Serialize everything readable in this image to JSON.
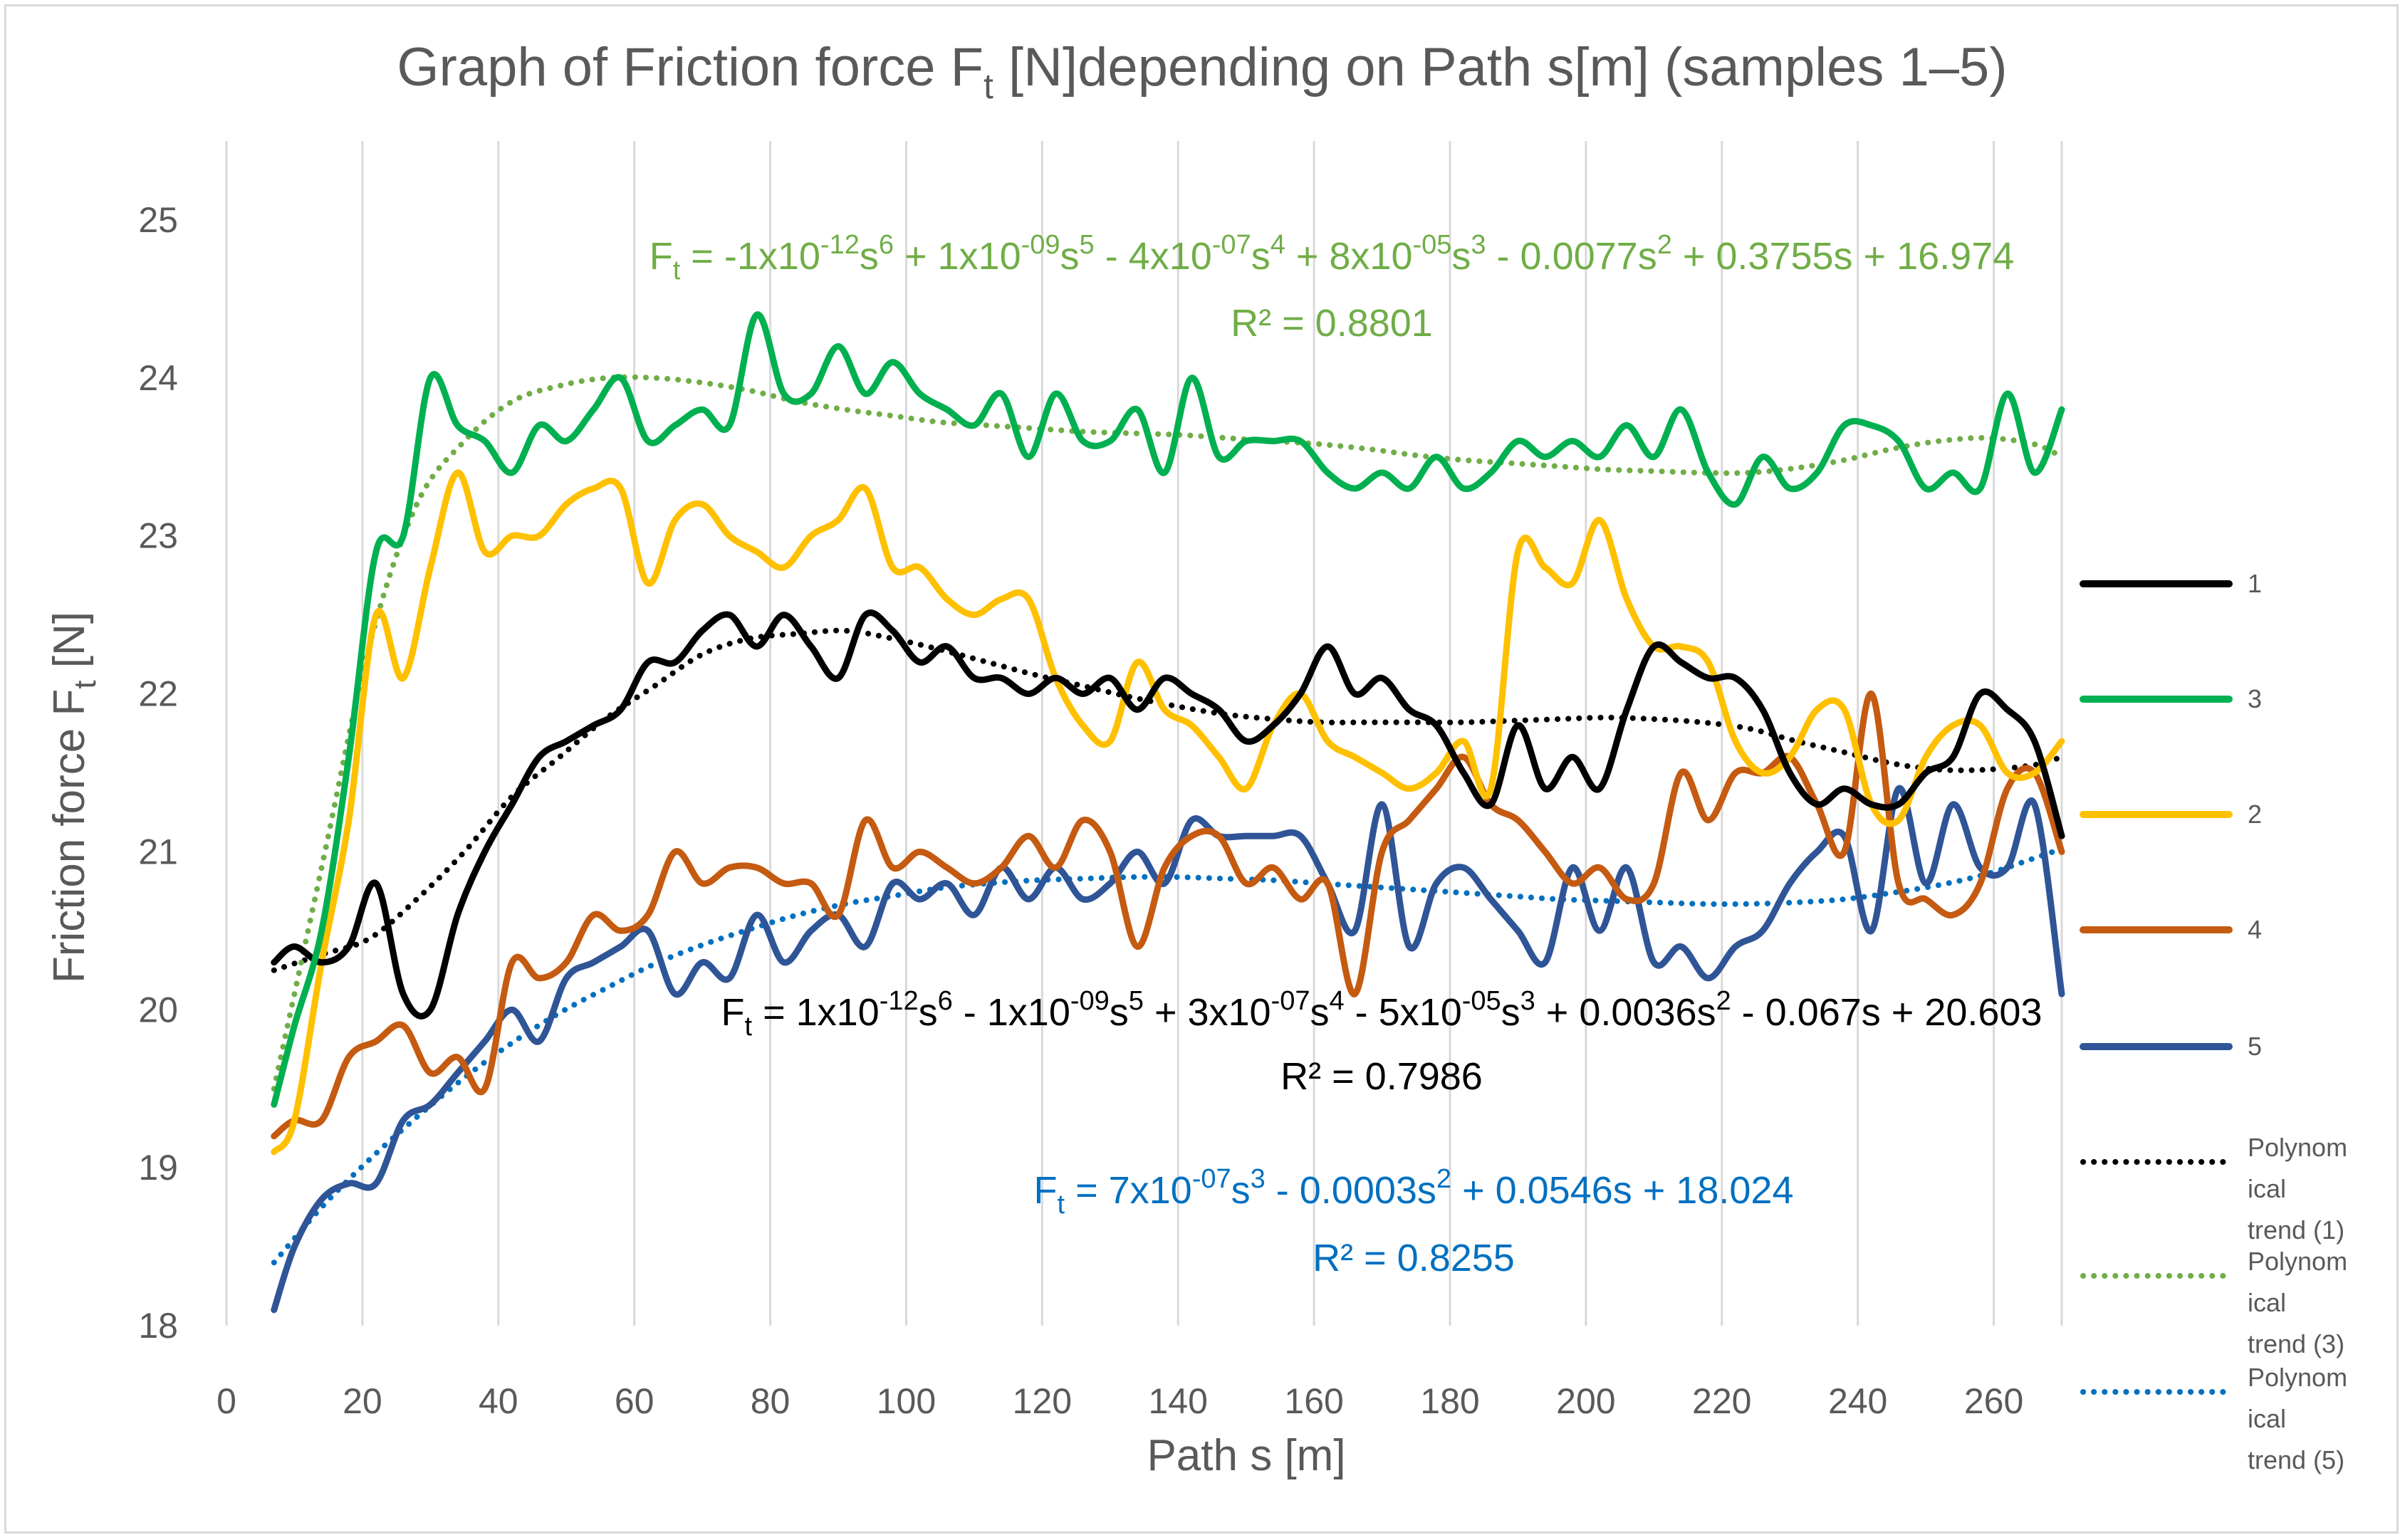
{
  "chart_data": {
    "type": "line",
    "title": "Graph of Friction force F",
    "title_sub": "t",
    "title_rest": " [N]depending on Path s[m] (samples 1–5)",
    "xlabel": "Path s [m]",
    "ylabel": "Friction force F",
    "ylabel_sub": "t",
    "ylabel_rest": " [N]",
    "xlim": [
      0,
      270
    ],
    "ylim": [
      18,
      25.5
    ],
    "xticks": [
      "0",
      "20",
      "40",
      "60",
      "80",
      "100",
      "120",
      "140",
      "160",
      "180",
      "200",
      "220",
      "240",
      "260"
    ],
    "yticks": [
      "18",
      "19",
      "20",
      "21",
      "22",
      "23",
      "24",
      "25"
    ],
    "grid": "vertical",
    "legend_position": "right",
    "series": [
      {
        "name": "1",
        "color": "#000000",
        "x": [
          7,
          10,
          14,
          18,
          22,
          26,
          30,
          34,
          38,
          42,
          46,
          50,
          54,
          58,
          62,
          66,
          70,
          74,
          78,
          82,
          86,
          90,
          94,
          98,
          102,
          106,
          110,
          114,
          118,
          122,
          126,
          130,
          134,
          138,
          142,
          146,
          150,
          154,
          158,
          162,
          166,
          170,
          174,
          178,
          182,
          186,
          190,
          194,
          198,
          202,
          206,
          210,
          214,
          218,
          222,
          226,
          230,
          234,
          238,
          242,
          246,
          250,
          254,
          258,
          262,
          266,
          270
        ],
        "y": [
          20.3,
          20.4,
          20.3,
          20.4,
          20.8,
          20.1,
          20.0,
          20.6,
          21.0,
          21.3,
          21.6,
          21.7,
          21.8,
          21.9,
          22.2,
          22.2,
          22.4,
          22.5,
          22.3,
          22.5,
          22.3,
          22.1,
          22.5,
          22.4,
          22.2,
          22.3,
          22.1,
          22.1,
          22.0,
          22.1,
          22.0,
          22.1,
          21.9,
          22.1,
          22.0,
          21.9,
          21.7,
          21.8,
          22.0,
          22.3,
          22.0,
          22.1,
          21.9,
          21.8,
          21.5,
          21.3,
          21.8,
          21.4,
          21.6,
          21.4,
          21.9,
          22.3,
          22.2,
          22.1,
          22.1,
          21.9,
          21.5,
          21.3,
          21.4,
          21.3,
          21.3,
          21.5,
          21.6,
          22.0,
          21.9,
          21.7,
          21.1
        ]
      },
      {
        "name": "3",
        "color": "#00b050",
        "x": [
          7,
          10,
          14,
          18,
          22,
          26,
          30,
          34,
          38,
          42,
          46,
          50,
          54,
          58,
          62,
          66,
          70,
          74,
          78,
          82,
          86,
          90,
          94,
          98,
          102,
          106,
          110,
          114,
          118,
          122,
          126,
          130,
          134,
          138,
          142,
          146,
          150,
          154,
          158,
          162,
          166,
          170,
          174,
          178,
          182,
          186,
          190,
          194,
          198,
          202,
          206,
          210,
          214,
          218,
          222,
          226,
          230,
          234,
          238,
          242,
          246,
          250,
          254,
          258,
          262,
          266,
          270
        ],
        "y": [
          19.4,
          19.9,
          20.5,
          21.6,
          22.9,
          23.0,
          24.0,
          23.7,
          23.6,
          23.4,
          23.7,
          23.6,
          23.8,
          24.0,
          23.6,
          23.7,
          23.8,
          23.7,
          24.4,
          23.9,
          23.9,
          24.2,
          23.9,
          24.1,
          23.9,
          23.8,
          23.7,
          23.9,
          23.5,
          23.9,
          23.6,
          23.6,
          23.8,
          23.4,
          24.0,
          23.5,
          23.6,
          23.6,
          23.6,
          23.4,
          23.3,
          23.4,
          23.3,
          23.5,
          23.3,
          23.4,
          23.6,
          23.5,
          23.6,
          23.5,
          23.7,
          23.5,
          23.8,
          23.4,
          23.2,
          23.5,
          23.3,
          23.4,
          23.7,
          23.7,
          23.6,
          23.3,
          23.4,
          23.3,
          23.9,
          23.4,
          23.8
        ]
      },
      {
        "name": "2",
        "color": "#ffc000",
        "x": [
          7,
          10,
          14,
          18,
          22,
          26,
          30,
          34,
          38,
          42,
          46,
          50,
          54,
          58,
          62,
          66,
          70,
          74,
          78,
          82,
          86,
          90,
          94,
          98,
          102,
          106,
          110,
          114,
          118,
          122,
          126,
          130,
          134,
          138,
          142,
          146,
          150,
          154,
          158,
          162,
          166,
          170,
          174,
          178,
          182,
          186,
          190,
          194,
          198,
          202,
          206,
          210,
          214,
          218,
          222,
          226,
          230,
          234,
          238,
          242,
          246,
          250,
          254,
          258,
          262,
          266,
          270
        ],
        "y": [
          19.1,
          19.3,
          20.3,
          21.2,
          22.5,
          22.1,
          22.8,
          23.4,
          22.9,
          23.0,
          23.0,
          23.2,
          23.3,
          23.3,
          22.7,
          23.1,
          23.2,
          23.0,
          22.9,
          22.8,
          23.0,
          23.1,
          23.3,
          22.8,
          22.8,
          22.6,
          22.5,
          22.6,
          22.6,
          22.1,
          21.8,
          21.7,
          22.2,
          21.9,
          21.8,
          21.6,
          21.4,
          21.8,
          22.0,
          21.7,
          21.6,
          21.5,
          21.4,
          21.5,
          21.7,
          21.4,
          22.9,
          22.8,
          22.7,
          23.1,
          22.6,
          22.3,
          22.3,
          22.2,
          21.7,
          21.5,
          21.6,
          21.9,
          21.9,
          21.3,
          21.2,
          21.6,
          21.8,
          21.8,
          21.5,
          21.5,
          21.7
        ]
      },
      {
        "name": "4",
        "color": "#c55a11",
        "x": [
          7,
          10,
          14,
          18,
          22,
          26,
          30,
          34,
          38,
          42,
          46,
          50,
          54,
          58,
          62,
          66,
          70,
          74,
          78,
          82,
          86,
          90,
          94,
          98,
          102,
          106,
          110,
          114,
          118,
          122,
          126,
          130,
          134,
          138,
          142,
          146,
          150,
          154,
          158,
          162,
          166,
          170,
          174,
          178,
          182,
          186,
          190,
          194,
          198,
          202,
          206,
          210,
          214,
          218,
          222,
          226,
          230,
          234,
          238,
          242,
          246,
          250,
          254,
          258,
          262,
          266,
          270
        ],
        "y": [
          19.2,
          19.3,
          19.3,
          19.7,
          19.8,
          19.9,
          19.6,
          19.7,
          19.5,
          20.3,
          20.2,
          20.3,
          20.6,
          20.5,
          20.6,
          21.0,
          20.8,
          20.9,
          20.9,
          20.8,
          20.8,
          20.6,
          21.2,
          20.9,
          21.0,
          20.9,
          20.8,
          20.9,
          21.1,
          20.9,
          21.2,
          21.0,
          20.4,
          20.9,
          21.1,
          21.1,
          20.8,
          20.9,
          20.7,
          20.8,
          20.1,
          21.0,
          21.2,
          21.4,
          21.6,
          21.3,
          21.2,
          21.0,
          20.8,
          20.9,
          20.7,
          20.8,
          21.5,
          21.2,
          21.5,
          21.5,
          21.6,
          21.3,
          21.0,
          22.0,
          20.8,
          20.7,
          20.6,
          20.8,
          21.4,
          21.5,
          21.0
        ]
      },
      {
        "name": "5",
        "color": "#2f5597",
        "x": [
          7,
          10,
          14,
          18,
          22,
          26,
          30,
          34,
          38,
          42,
          46,
          50,
          54,
          58,
          62,
          66,
          70,
          74,
          78,
          82,
          86,
          90,
          94,
          98,
          102,
          106,
          110,
          114,
          118,
          122,
          126,
          130,
          134,
          138,
          142,
          146,
          150,
          154,
          158,
          162,
          166,
          170,
          174,
          178,
          182,
          186,
          190,
          194,
          198,
          202,
          206,
          210,
          214,
          218,
          222,
          226,
          230,
          234,
          238,
          242,
          246,
          250,
          254,
          258,
          262,
          266,
          270
        ],
        "y": [
          18.1,
          18.5,
          18.8,
          18.9,
          18.9,
          19.3,
          19.4,
          19.6,
          19.8,
          20.0,
          19.8,
          20.2,
          20.3,
          20.4,
          20.5,
          20.1,
          20.3,
          20.2,
          20.6,
          20.3,
          20.5,
          20.6,
          20.4,
          20.8,
          20.7,
          20.8,
          20.6,
          20.9,
          20.7,
          20.9,
          20.7,
          20.8,
          21.0,
          20.8,
          21.2,
          21.1,
          21.1,
          21.1,
          21.1,
          20.8,
          20.5,
          21.3,
          20.4,
          20.8,
          20.9,
          20.7,
          20.5,
          20.3,
          20.9,
          20.5,
          20.9,
          20.3,
          20.4,
          20.2,
          20.4,
          20.5,
          20.8,
          21.0,
          21.1,
          20.5,
          21.4,
          20.8,
          21.3,
          20.9,
          20.9,
          21.3,
          20.1
        ]
      },
      {
        "name": "Polynomical trend (1)",
        "color": "#000000",
        "dashed": true,
        "x": [
          7,
          14,
          21,
          28,
          35,
          42,
          49,
          56,
          63,
          70,
          77,
          84,
          91,
          98,
          105,
          112,
          119,
          126,
          133,
          140,
          147,
          154,
          161,
          168,
          175,
          182,
          189,
          196,
          203,
          210,
          217,
          224,
          231,
          238,
          245,
          252,
          259,
          266,
          270
        ],
        "y": [
          20.25,
          20.35,
          20.45,
          20.7,
          21.0,
          21.35,
          21.6,
          21.85,
          22.05,
          22.25,
          22.35,
          22.38,
          22.4,
          22.35,
          22.28,
          22.2,
          22.12,
          22.05,
          21.98,
          21.92,
          21.87,
          21.84,
          21.82,
          21.82,
          21.82,
          21.82,
          21.83,
          21.84,
          21.85,
          21.84,
          21.82,
          21.78,
          21.7,
          21.63,
          21.56,
          21.52,
          21.52,
          21.55,
          21.6
        ]
      },
      {
        "name": "Polynomical trend (3)",
        "color": "#70ad47",
        "dashed": true,
        "x": [
          7,
          14,
          21,
          28,
          35,
          42,
          49,
          56,
          63,
          70,
          77,
          84,
          91,
          98,
          105,
          112,
          119,
          126,
          133,
          140,
          147,
          154,
          161,
          168,
          175,
          182,
          189,
          196,
          203,
          210,
          217,
          224,
          231,
          238,
          245,
          252,
          259,
          266,
          270
        ],
        "y": [
          19.5,
          20.9,
          22.3,
          23.2,
          23.6,
          23.85,
          23.95,
          24.0,
          24.0,
          23.97,
          23.92,
          23.85,
          23.8,
          23.76,
          23.72,
          23.7,
          23.68,
          23.66,
          23.65,
          23.64,
          23.62,
          23.6,
          23.58,
          23.55,
          23.51,
          23.48,
          23.46,
          23.44,
          23.42,
          23.41,
          23.4,
          23.4,
          23.43,
          23.48,
          23.55,
          23.6,
          23.62,
          23.58,
          23.5
        ]
      },
      {
        "name": "Polynomical trend (5)",
        "color": "#0070c0",
        "dashed": true,
        "x": [
          7,
          14,
          21,
          28,
          35,
          42,
          49,
          56,
          63,
          70,
          77,
          84,
          91,
          98,
          105,
          112,
          119,
          126,
          133,
          140,
          147,
          154,
          161,
          168,
          175,
          182,
          189,
          196,
          203,
          210,
          217,
          224,
          231,
          238,
          245,
          252,
          259,
          266,
          270
        ],
        "y": [
          18.4,
          18.75,
          19.05,
          19.32,
          19.57,
          19.79,
          19.98,
          20.14,
          20.29,
          20.41,
          20.51,
          20.6,
          20.67,
          20.72,
          20.77,
          20.8,
          20.82,
          20.83,
          20.84,
          20.84,
          20.83,
          20.82,
          20.8,
          20.78,
          20.76,
          20.74,
          20.72,
          20.7,
          20.69,
          20.68,
          20.67,
          20.67,
          20.68,
          20.7,
          20.74,
          20.79,
          20.86,
          20.96,
          21.02
        ]
      }
    ],
    "annotations": {
      "eq3": {
        "prefix": "F",
        "sub": "t",
        "body": " = -1x10",
        "color": "#70ad47",
        "parts": [
          [
            " = -1x10",
            "-12"
          ],
          [
            "s",
            "6"
          ],
          [
            " + 1x10",
            "-09"
          ],
          [
            "s",
            "5"
          ],
          [
            " - 4x10",
            "-07"
          ],
          [
            "s",
            "4"
          ],
          [
            " + 8x10",
            "-05"
          ],
          [
            "s",
            "3"
          ],
          [
            " - 0.0077s",
            "2"
          ],
          [
            " + 0.3755s + 16.974",
            ""
          ]
        ],
        "r2": "R² = 0.8801"
      },
      "eq1": {
        "prefix": "F",
        "sub": "t",
        "color": "#000000",
        "parts": [
          [
            " = 1x10",
            "-12"
          ],
          [
            "s",
            "6"
          ],
          [
            " - 1x10",
            "-09"
          ],
          [
            "s",
            "5"
          ],
          [
            " + 3x10",
            "-07"
          ],
          [
            "s",
            "4"
          ],
          [
            " - 5x10",
            "-05"
          ],
          [
            "s",
            "3"
          ],
          [
            " + 0.0036s",
            "2"
          ],
          [
            " - 0.067s + 20.603",
            ""
          ]
        ],
        "r2": "R² = 0.7986"
      },
      "eq5": {
        "prefix": "F",
        "sub": "t",
        "color": "#0070c0",
        "parts": [
          [
            " = 7x10",
            "-07"
          ],
          [
            "s",
            "3"
          ],
          [
            " - 0.0003s",
            "2"
          ],
          [
            " + 0.0546s + 18.024",
            ""
          ]
        ],
        "r2": "R² = 0.8255"
      }
    },
    "legend": [
      {
        "label": [
          "1"
        ],
        "color": "#000000"
      },
      {
        "label": [
          "3"
        ],
        "color": "#00b050"
      },
      {
        "label": [
          "2"
        ],
        "color": "#ffc000"
      },
      {
        "label": [
          "4"
        ],
        "color": "#c55a11"
      },
      {
        "label": [
          "5"
        ],
        "color": "#2f5597"
      },
      {
        "label": [
          "Polynom",
          "ical",
          "trend (1)"
        ],
        "color": "#000000",
        "dashed": true
      },
      {
        "label": [
          "Polynom",
          "ical",
          "trend (3)"
        ],
        "color": "#70ad47",
        "dashed": true
      },
      {
        "label": [
          "Polynom",
          "ical",
          "trend (5)"
        ],
        "color": "#0070c0",
        "dashed": true
      }
    ]
  }
}
